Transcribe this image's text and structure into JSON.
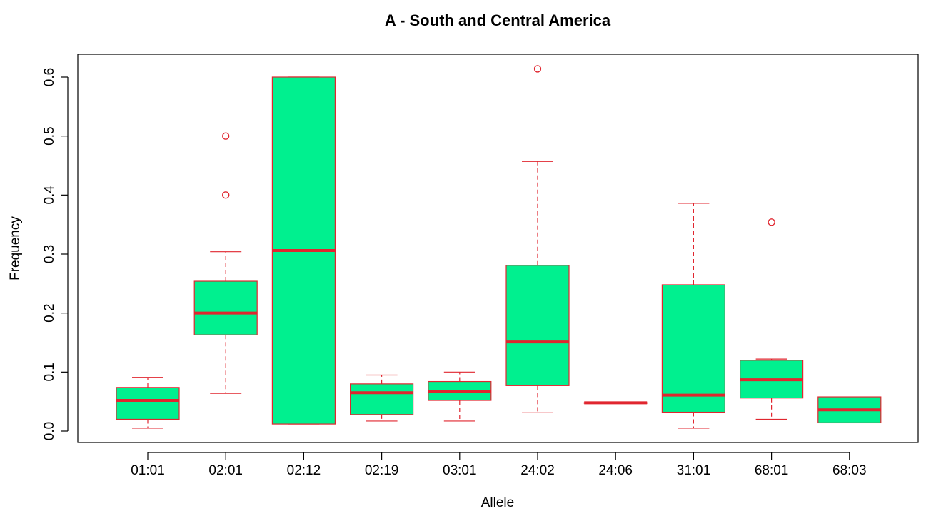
{
  "chart_data": {
    "type": "boxplot",
    "title": "A - South and Central America",
    "xlabel": "Allele",
    "ylabel": "Frequency",
    "ylim": [
      -0.02,
      0.64
    ],
    "yticks": [
      0.0,
      0.1,
      0.2,
      0.3,
      0.4,
      0.5,
      0.6
    ],
    "ytick_labels": [
      "0.0",
      "0.1",
      "0.2",
      "0.3",
      "0.4",
      "0.5",
      "0.6"
    ],
    "grid": false,
    "colors": {
      "box_fill": "#00F08F",
      "box_line": "#E0262F",
      "axis": "#000000"
    },
    "categories": [
      "01:01",
      "02:01",
      "02:12",
      "02:19",
      "03:01",
      "24:02",
      "24:06",
      "31:01",
      "68:01",
      "68:03"
    ],
    "boxes": [
      {
        "category": "01:01",
        "whisker_low": 0.005,
        "q1": 0.02,
        "median": 0.052,
        "q3": 0.074,
        "whisker_high": 0.091,
        "outliers": []
      },
      {
        "category": "02:01",
        "whisker_low": 0.064,
        "q1": 0.163,
        "median": 0.2,
        "q3": 0.254,
        "whisker_high": 0.304,
        "outliers": [
          0.4,
          0.5
        ]
      },
      {
        "category": "02:12",
        "whisker_low": 0.012,
        "q1": 0.012,
        "median": 0.306,
        "q3": 0.6,
        "whisker_high": 0.6,
        "outliers": []
      },
      {
        "category": "02:19",
        "whisker_low": 0.017,
        "q1": 0.028,
        "median": 0.065,
        "q3": 0.08,
        "whisker_high": 0.095,
        "outliers": []
      },
      {
        "category": "03:01",
        "whisker_low": 0.017,
        "q1": 0.052,
        "median": 0.067,
        "q3": 0.084,
        "whisker_high": 0.1,
        "outliers": []
      },
      {
        "category": "24:02",
        "whisker_low": 0.031,
        "q1": 0.077,
        "median": 0.151,
        "q3": 0.281,
        "whisker_high": 0.457,
        "outliers": [
          0.614
        ]
      },
      {
        "category": "24:06",
        "whisker_low": 0.048,
        "q1": 0.048,
        "median": 0.048,
        "q3": 0.048,
        "whisker_high": 0.048,
        "outliers": []
      },
      {
        "category": "31:01",
        "whisker_low": 0.005,
        "q1": 0.032,
        "median": 0.061,
        "q3": 0.248,
        "whisker_high": 0.386,
        "outliers": []
      },
      {
        "category": "68:01",
        "whisker_low": 0.02,
        "q1": 0.056,
        "median": 0.087,
        "q3": 0.12,
        "whisker_high": 0.122,
        "outliers": [
          0.354
        ]
      },
      {
        "category": "68:03",
        "whisker_low": 0.014,
        "q1": 0.014,
        "median": 0.036,
        "q3": 0.058,
        "whisker_high": 0.058,
        "outliers": []
      }
    ]
  }
}
